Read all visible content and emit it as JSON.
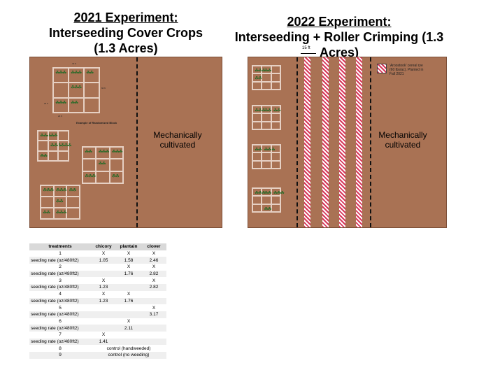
{
  "left_panel": {
    "title_line1": "2021 Experiment:",
    "title_line2": "Interseeding Cover Crops",
    "title_line3": "(1.3 Acres)",
    "mech_label": "Mechanically cultivated",
    "block_caption": "Example of Randomized Block",
    "dim_top": "72 ft",
    "dim_right": "60 ft",
    "dim_left": "24 ft",
    "dim_bottom": "24 ft",
    "field_color": "#a97254"
  },
  "right_panel": {
    "title_line1": "2022 Experiment:",
    "title_line2": "Interseeding + Roller Crimping (1.3 Acres)",
    "scale_label": "15 ft",
    "mech_label": "Mechanically cultivated",
    "legend_text": "'Aroostook' cereal rye (60 lbs/ac). Planted in Fall 2021",
    "stripe_color": "#d7375a"
  },
  "treatments_table": {
    "headers": [
      "treatments",
      "chicory",
      "plantain",
      "clover"
    ],
    "rows": [
      [
        "1",
        "X",
        "X",
        "X"
      ],
      [
        "seeding rate (oz/480ft2)",
        "1.05",
        "1.58",
        "2.46"
      ],
      [
        "2",
        "",
        "X",
        "X"
      ],
      [
        "seeding rate (oz/480ft2)",
        "",
        "1.76",
        "2.82"
      ],
      [
        "3",
        "X",
        "",
        "X"
      ],
      [
        "seeding rate (oz/480ft2)",
        "1.23",
        "",
        "2.82"
      ],
      [
        "4",
        "X",
        "X",
        ""
      ],
      [
        "seeding rate (oz/480ft2)",
        "1.23",
        "1.76",
        ""
      ],
      [
        "5",
        "",
        "",
        "X"
      ],
      [
        "seeding rate (oz/480ft2)",
        "",
        "",
        "3.17"
      ],
      [
        "6",
        "",
        "X",
        ""
      ],
      [
        "seeding rate (oz/480ft2)",
        "",
        "2.11",
        ""
      ],
      [
        "7",
        "X",
        "",
        ""
      ],
      [
        "seeding rate (oz/480ft2)",
        "1.41",
        "",
        ""
      ]
    ],
    "controls": [
      [
        "8",
        "control (handweeded)"
      ],
      [
        "9",
        "control (no weeding)"
      ]
    ]
  }
}
